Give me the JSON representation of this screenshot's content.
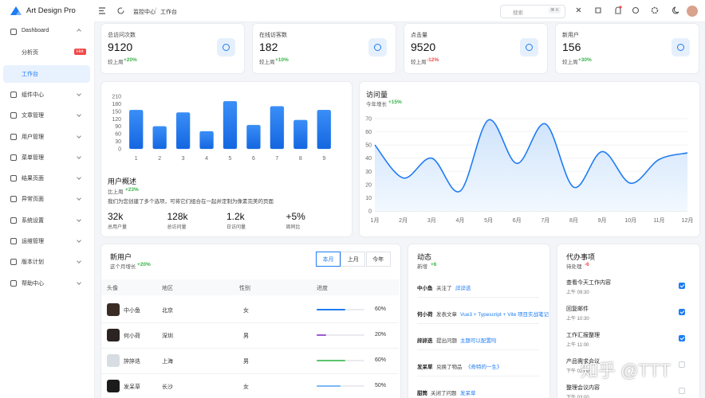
{
  "sidebar": {
    "logo": "Art Design Pro",
    "menu": [
      {
        "label": "Dashboard"
      },
      {
        "label": "分析页",
        "badge": "Hot"
      },
      {
        "label": "工作台"
      },
      {
        "label": "组件中心"
      },
      {
        "label": "文章管理"
      },
      {
        "label": "用户管理"
      },
      {
        "label": "菜单管理"
      },
      {
        "label": "结果页面"
      },
      {
        "label": "异常页面"
      },
      {
        "label": "系统设置"
      },
      {
        "label": "运维管理"
      },
      {
        "label": "版本计划"
      },
      {
        "label": "帮助中心"
      }
    ]
  },
  "header": {
    "breadcrumb": [
      "监控中心",
      "工作台"
    ],
    "separator": "/",
    "search": "搜索",
    "shortcut": "⌘ K"
  },
  "stats": [
    {
      "label": "总访问次数",
      "value": "9120",
      "compare": "较上周",
      "change": "+20%"
    },
    {
      "label": "在线访客数",
      "value": "182",
      "compare": "较上周",
      "change": "+10%"
    },
    {
      "label": "点击量",
      "value": "9520",
      "compare": "较上周",
      "change": "-12%"
    },
    {
      "label": "新用户",
      "value": "156",
      "compare": "较上周",
      "change": "+30%"
    }
  ],
  "chart_data": [
    {
      "type": "bar",
      "categories": [
        "1",
        "2",
        "3",
        "4",
        "5",
        "6",
        "7",
        "8",
        "9"
      ],
      "values": [
        155,
        90,
        145,
        70,
        190,
        95,
        170,
        115,
        155
      ],
      "color": "#1f7cf2",
      "ylim": [
        0,
        210
      ],
      "yticks": [
        0,
        30,
        60,
        90,
        120,
        150,
        180,
        210
      ]
    },
    {
      "type": "line",
      "title": "访问量",
      "subtitle": "今年增长",
      "change": "+15%",
      "categories": [
        "1月",
        "2月",
        "3月",
        "4月",
        "5月",
        "6月",
        "7月",
        "8月",
        "9月",
        "10月",
        "11月",
        "12月"
      ],
      "values": [
        50,
        25,
        40,
        15,
        69,
        36,
        66,
        18,
        45,
        21,
        39,
        44
      ],
      "color": "#1f7cf2",
      "ylim": [
        0,
        70
      ],
      "yticks": [
        0,
        10,
        20,
        30,
        40,
        50,
        60,
        70
      ],
      "grid": true
    }
  ],
  "overview": {
    "title": "用户概述",
    "compare": "比上周",
    "change": "+23%",
    "description": "我们为您创建了多个选项，可将它们组合在一起并定制为像素完美的页面",
    "metrics": [
      {
        "value": "32k",
        "label": "总用户量"
      },
      {
        "value": "128k",
        "label": "总访问量"
      },
      {
        "value": "1.2k",
        "label": "日访问量"
      },
      {
        "value": "+5%",
        "label": "周同比"
      }
    ]
  },
  "new_users": {
    "title": "新用户",
    "subtitle": "这个月增长",
    "change": "+20%",
    "tabs": [
      "本月",
      "上月",
      "今年"
    ],
    "columns": [
      "头像",
      "地区",
      "性别",
      "进度"
    ],
    "rows": [
      {
        "name": "中小鱼",
        "region": "北京",
        "gender": "女",
        "progress": 60,
        "progress_label": "60%",
        "color": "#1f7cf2"
      },
      {
        "name": "何小荷",
        "region": "深圳",
        "gender": "男",
        "progress": 20,
        "progress_label": "20%",
        "color": "#9b59d0"
      },
      {
        "name": "誶誶迭",
        "region": "上海",
        "gender": "男",
        "progress": 60,
        "progress_label": "60%",
        "color": "#5cc46b"
      },
      {
        "name": "发呆草",
        "region": "长沙",
        "gender": "女",
        "progress": 50,
        "progress_label": "50%",
        "color": "#7ab8f5"
      }
    ]
  },
  "activity": {
    "title": "动态",
    "subtitle": "新增",
    "change": "+6",
    "items": [
      {
        "user": "中小鱼",
        "action": "关注了",
        "target": "誶誶迭"
      },
      {
        "user": "何小荷",
        "action": "发表文章",
        "target": "Vue3 + Typescript + Vite 项目实战笔记"
      },
      {
        "user": "誶誶迭",
        "action": "提出问题",
        "target": "主题可以配置吗"
      },
      {
        "user": "发呆草",
        "action": "兑换了物品",
        "target": "《奇特的一生》"
      },
      {
        "user": "甜筒",
        "action": "关闭了问题",
        "target": "发呆草"
      }
    ]
  },
  "todo": {
    "title": "代办事项",
    "subtitle": "待处理",
    "change": "-6",
    "items": [
      {
        "task": "查看今天工作内容",
        "time": "上午 09:30",
        "done": true
      },
      {
        "task": "回复邮件",
        "time": "上午 10:30",
        "done": true
      },
      {
        "task": "工作汇报整理",
        "time": "上午 11:00",
        "done": true
      },
      {
        "task": "产品需求会议",
        "time": "下午 02:00",
        "done": false
      },
      {
        "task": "整理会议内容",
        "time": "下午 03:00",
        "done": false
      }
    ]
  },
  "watermark": "知乎 @TTT"
}
